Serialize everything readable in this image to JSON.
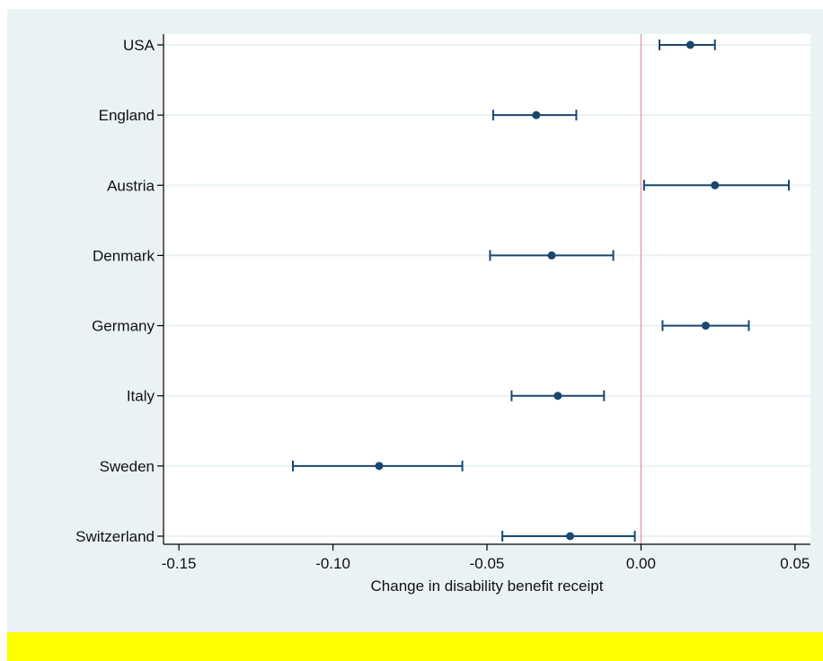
{
  "chart_data": {
    "type": "forest",
    "xlabel": "Change in disability benefit receipt",
    "ylabel": "",
    "title": "",
    "xlim": [
      -0.155,
      0.055
    ],
    "xticks": [
      -0.15,
      -0.1,
      -0.05,
      0.0,
      0.05
    ],
    "xtick_labels": [
      "-0.15",
      "-0.10",
      "-0.05",
      "0.00",
      "0.05"
    ],
    "reference_line": 0.0,
    "grid": true,
    "categories": [
      "USA",
      "England",
      "Austria",
      "Denmark",
      "Germany",
      "Italy",
      "Sweden",
      "Switzerland"
    ],
    "estimates": [
      0.016,
      -0.034,
      0.024,
      -0.029,
      0.021,
      -0.027,
      -0.085,
      -0.023
    ],
    "ci_lower": [
      0.006,
      -0.048,
      0.001,
      -0.049,
      0.007,
      -0.042,
      -0.113,
      -0.045
    ],
    "ci_upper": [
      0.024,
      -0.021,
      0.048,
      -0.009,
      0.035,
      -0.012,
      -0.058,
      -0.002
    ]
  },
  "colors": {
    "outer_background": "#eaf2f3",
    "plot_background": "#ffffff",
    "gridline": "#eaf2f3",
    "marker": "#1a476f",
    "reference_line": "#e8a0a8",
    "axis": "#000000",
    "footer_bar": "#ffff00"
  }
}
